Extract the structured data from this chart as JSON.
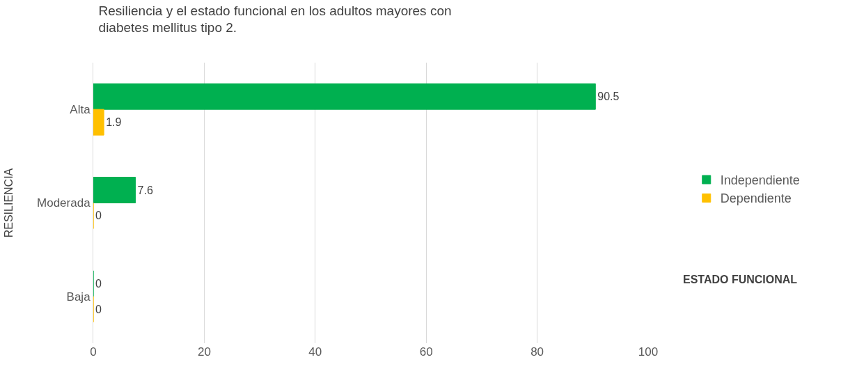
{
  "chart_data": {
    "type": "bar",
    "orientation": "horizontal",
    "title": "Resiliencia y el estado funcional en los adultos mayores con diabetes mellitus tipo 2.",
    "ylabel": "RESILIENCIA",
    "xlabel": "ESTADO FUNCIONAL",
    "categories": [
      "Alta",
      "Moderada",
      "Baja"
    ],
    "series": [
      {
        "name": "Independiente",
        "color": "#00b050",
        "values": [
          90.5,
          7.6,
          0
        ]
      },
      {
        "name": "Dependiente",
        "color": "#ffc000",
        "values": [
          1.9,
          0,
          0
        ]
      }
    ],
    "xlim": [
      0,
      100
    ],
    "xticks": [
      0,
      20,
      40,
      60,
      80,
      100
    ],
    "grid": "x",
    "legend": "right",
    "data_labels": true
  }
}
